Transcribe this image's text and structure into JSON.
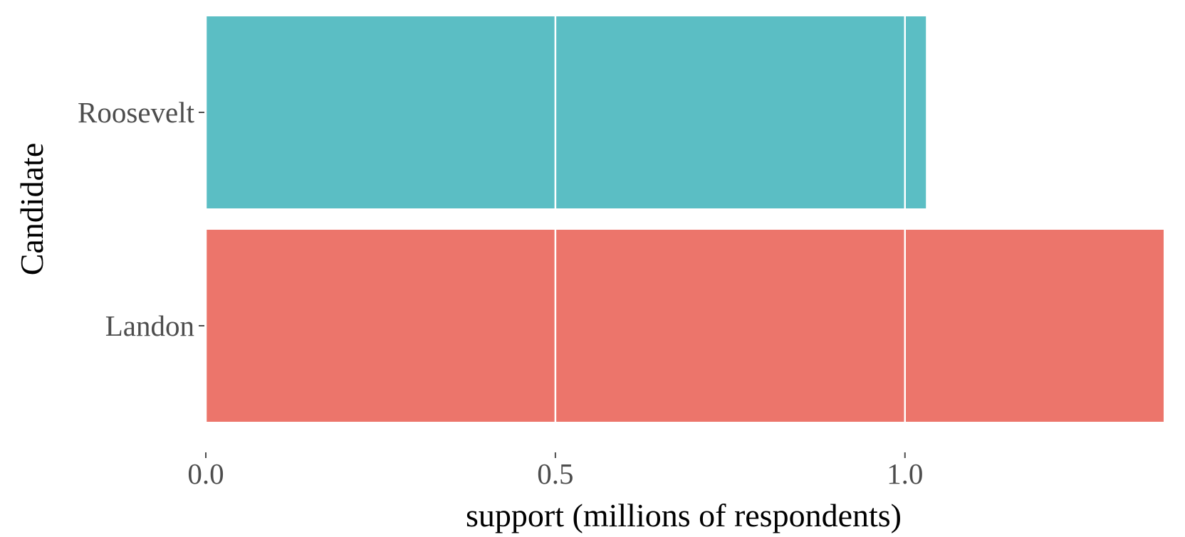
{
  "chart_data": {
    "type": "bar",
    "orientation": "horizontal",
    "categories": [
      "Landon",
      "Roosevelt"
    ],
    "values": [
      1.37,
      1.03
    ],
    "colors": [
      "#ec756b",
      "#5bbec4"
    ],
    "xlabel": "support (millions of respondents)",
    "ylabel": "Candidate",
    "xticks": [
      0.0,
      0.5,
      1.0
    ],
    "xtick_labels": [
      "0.0",
      "0.5",
      "1.0"
    ],
    "xlim": [
      0,
      1.37
    ],
    "grid": "vertical, drawn over bars",
    "legend": "none"
  }
}
